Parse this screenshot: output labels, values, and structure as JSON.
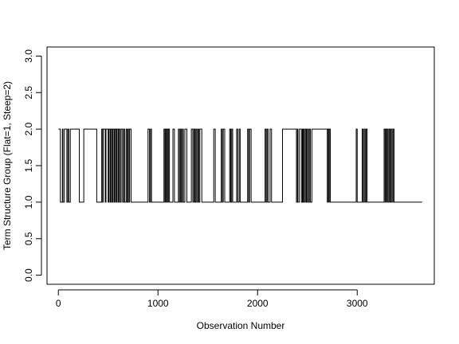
{
  "chart_data": {
    "type": "line",
    "title": "",
    "xlabel": "Observation Number",
    "ylabel": "Term Structure Group (Flat=1, Steep=2)",
    "xlim": [
      -114,
      3774
    ],
    "ylim": [
      -0.124,
      3.124
    ],
    "grid": false,
    "legend": "none",
    "line_color": "#000000",
    "x_ticks": [
      0,
      1000,
      2000,
      3000
    ],
    "x_tick_labels": [
      "0",
      "1000",
      "2000",
      "3000"
    ],
    "y_ticks": [
      0.0,
      0.5,
      1.0,
      1.5,
      2.0,
      2.5,
      3.0
    ],
    "y_tick_labels": [
      "0.0",
      "0.5",
      "1.0",
      "1.5",
      "2.0",
      "2.5",
      "3.0"
    ],
    "series": [
      {
        "x_end": 3652,
        "regimes": [
          [
            0,
            2
          ],
          [
            20,
            1
          ],
          [
            40,
            2
          ],
          [
            46,
            1
          ],
          [
            60,
            2
          ],
          [
            85,
            1
          ],
          [
            95,
            2
          ],
          [
            105,
            1
          ],
          [
            120,
            2
          ],
          [
            210,
            1
          ],
          [
            255,
            2
          ],
          [
            385,
            1
          ],
          [
            435,
            2
          ],
          [
            445,
            1
          ],
          [
            450,
            2
          ],
          [
            470,
            1
          ],
          [
            478,
            2
          ],
          [
            500,
            1
          ],
          [
            508,
            2
          ],
          [
            520,
            1
          ],
          [
            528,
            2
          ],
          [
            540,
            1
          ],
          [
            548,
            2
          ],
          [
            560,
            1
          ],
          [
            568,
            2
          ],
          [
            580,
            1
          ],
          [
            588,
            2
          ],
          [
            600,
            1
          ],
          [
            608,
            2
          ],
          [
            620,
            1
          ],
          [
            630,
            2
          ],
          [
            645,
            1
          ],
          [
            655,
            2
          ],
          [
            665,
            1
          ],
          [
            680,
            2
          ],
          [
            690,
            1
          ],
          [
            700,
            2
          ],
          [
            710,
            1
          ],
          [
            715,
            2
          ],
          [
            730,
            1
          ],
          [
            900,
            2
          ],
          [
            915,
            1
          ],
          [
            925,
            2
          ],
          [
            935,
            1
          ],
          [
            1060,
            2
          ],
          [
            1070,
            1
          ],
          [
            1075,
            2
          ],
          [
            1085,
            1
          ],
          [
            1090,
            2
          ],
          [
            1100,
            1
          ],
          [
            1105,
            2
          ],
          [
            1115,
            1
          ],
          [
            1150,
            2
          ],
          [
            1165,
            1
          ],
          [
            1205,
            2
          ],
          [
            1215,
            1
          ],
          [
            1225,
            2
          ],
          [
            1235,
            1
          ],
          [
            1245,
            2
          ],
          [
            1255,
            1
          ],
          [
            1270,
            2
          ],
          [
            1290,
            1
          ],
          [
            1335,
            2
          ],
          [
            1350,
            1
          ],
          [
            1360,
            2
          ],
          [
            1370,
            1
          ],
          [
            1380,
            2
          ],
          [
            1390,
            1
          ],
          [
            1400,
            2
          ],
          [
            1410,
            1
          ],
          [
            1420,
            2
          ],
          [
            1440,
            1
          ],
          [
            1560,
            2
          ],
          [
            1575,
            1
          ],
          [
            1635,
            2
          ],
          [
            1645,
            1
          ],
          [
            1655,
            2
          ],
          [
            1670,
            1
          ],
          [
            1720,
            2
          ],
          [
            1730,
            1
          ],
          [
            1740,
            2
          ],
          [
            1750,
            1
          ],
          [
            1790,
            2
          ],
          [
            1800,
            1
          ],
          [
            1815,
            2
          ],
          [
            1825,
            1
          ],
          [
            1900,
            2
          ],
          [
            1910,
            1
          ],
          [
            1920,
            2
          ],
          [
            1935,
            1
          ],
          [
            2075,
            2
          ],
          [
            2085,
            1
          ],
          [
            2095,
            2
          ],
          [
            2105,
            1
          ],
          [
            2125,
            2
          ],
          [
            2140,
            1
          ],
          [
            2250,
            2
          ],
          [
            2390,
            1
          ],
          [
            2400,
            2
          ],
          [
            2405,
            1
          ],
          [
            2420,
            2
          ],
          [
            2440,
            1
          ],
          [
            2450,
            2
          ],
          [
            2455,
            1
          ],
          [
            2460,
            2
          ],
          [
            2470,
            1
          ],
          [
            2480,
            2
          ],
          [
            2490,
            1
          ],
          [
            2500,
            2
          ],
          [
            2510,
            1
          ],
          [
            2520,
            2
          ],
          [
            2530,
            1
          ],
          [
            2545,
            2
          ],
          [
            2700,
            1
          ],
          [
            2705,
            2
          ],
          [
            2715,
            1
          ],
          [
            2720,
            2
          ],
          [
            2730,
            1
          ],
          [
            2990,
            2
          ],
          [
            3000,
            1
          ],
          [
            3050,
            2
          ],
          [
            3060,
            1
          ],
          [
            3070,
            2
          ],
          [
            3080,
            1
          ],
          [
            3090,
            2
          ],
          [
            3100,
            1
          ],
          [
            3270,
            2
          ],
          [
            3280,
            1
          ],
          [
            3285,
            2
          ],
          [
            3295,
            1
          ],
          [
            3300,
            2
          ],
          [
            3310,
            1
          ],
          [
            3320,
            2
          ],
          [
            3330,
            1
          ],
          [
            3340,
            2
          ],
          [
            3350,
            1
          ],
          [
            3360,
            2
          ],
          [
            3370,
            1
          ]
        ]
      }
    ]
  }
}
